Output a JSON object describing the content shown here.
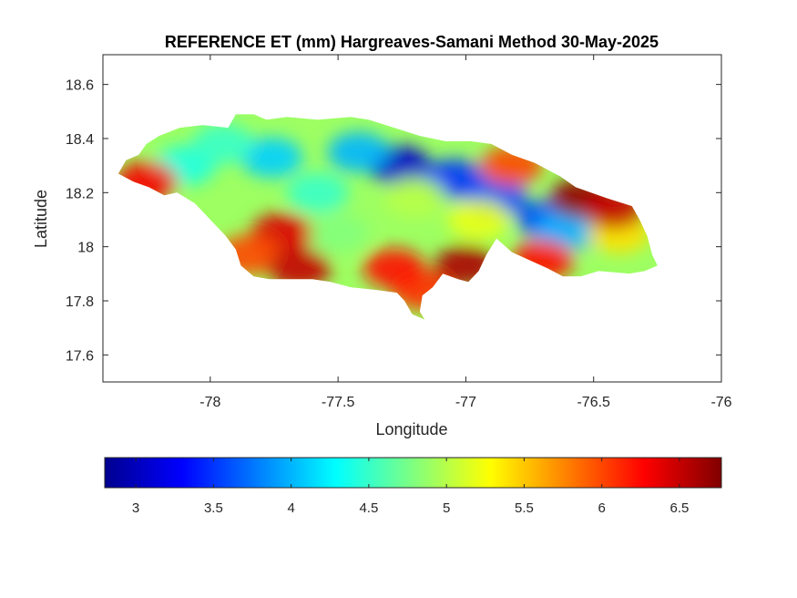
{
  "chart_data": {
    "type": "heatmap",
    "title": "REFERENCE ET (mm) Hargreaves-Samani Method  30-May-2025",
    "xlabel": "Longitude",
    "ylabel": "Latitude",
    "xlim": [
      -78.42,
      -76.0
    ],
    "ylim": [
      17.5,
      18.71
    ],
    "x_ticks": [
      -78,
      -77.5,
      -77,
      -76.5,
      -76
    ],
    "x_tick_labels": [
      "-78",
      "-77.5",
      "-77",
      "-76.5",
      "-76"
    ],
    "y_ticks": [
      17.6,
      17.8,
      18.0,
      18.2,
      18.4,
      18.6
    ],
    "y_tick_labels": [
      "17.6",
      "17.8",
      "18",
      "18.2",
      "18.4",
      "18.6"
    ],
    "grid": false,
    "colormap": "jet",
    "colorbar": {
      "orientation": "horizontal",
      "placement": "bottom",
      "range": [
        2.8,
        6.77
      ],
      "ticks": [
        3,
        3.5,
        4,
        4.5,
        5,
        5.5,
        6,
        6.5
      ],
      "tick_labels": [
        "3",
        "3.5",
        "4",
        "4.5",
        "5",
        "5.5",
        "6",
        "6.5"
      ]
    },
    "region_outline": [
      [
        -78.36,
        18.27
      ],
      [
        -78.33,
        18.32
      ],
      [
        -78.28,
        18.34
      ],
      [
        -78.25,
        18.38
      ],
      [
        -78.2,
        18.41
      ],
      [
        -78.12,
        18.44
      ],
      [
        -78.03,
        18.45
      ],
      [
        -77.93,
        18.44
      ],
      [
        -77.9,
        18.49
      ],
      [
        -77.83,
        18.49
      ],
      [
        -77.78,
        18.47
      ],
      [
        -77.7,
        18.48
      ],
      [
        -77.58,
        18.47
      ],
      [
        -77.45,
        18.48
      ],
      [
        -77.38,
        18.47
      ],
      [
        -77.28,
        18.44
      ],
      [
        -77.18,
        18.41
      ],
      [
        -77.08,
        18.39
      ],
      [
        -76.98,
        18.39
      ],
      [
        -76.9,
        18.38
      ],
      [
        -76.82,
        18.34
      ],
      [
        -76.73,
        18.31
      ],
      [
        -76.63,
        18.26
      ],
      [
        -76.57,
        18.22
      ],
      [
        -76.45,
        18.18
      ],
      [
        -76.35,
        18.15
      ],
      [
        -76.32,
        18.1
      ],
      [
        -76.29,
        18.04
      ],
      [
        -76.27,
        17.97
      ],
      [
        -76.25,
        17.93
      ],
      [
        -76.3,
        17.91
      ],
      [
        -76.36,
        17.9
      ],
      [
        -76.48,
        17.91
      ],
      [
        -76.55,
        17.89
      ],
      [
        -76.62,
        17.89
      ],
      [
        -76.68,
        17.92
      ],
      [
        -76.75,
        17.95
      ],
      [
        -76.82,
        17.98
      ],
      [
        -76.88,
        18.03
      ],
      [
        -76.92,
        17.97
      ],
      [
        -76.95,
        17.91
      ],
      [
        -76.99,
        17.87
      ],
      [
        -77.03,
        17.88
      ],
      [
        -77.09,
        17.9
      ],
      [
        -77.13,
        17.85
      ],
      [
        -77.17,
        17.82
      ],
      [
        -77.18,
        17.76
      ],
      [
        -77.16,
        17.73
      ],
      [
        -77.21,
        17.75
      ],
      [
        -77.24,
        17.8
      ],
      [
        -77.27,
        17.83
      ],
      [
        -77.35,
        17.84
      ],
      [
        -77.45,
        17.85
      ],
      [
        -77.53,
        17.87
      ],
      [
        -77.6,
        17.88
      ],
      [
        -77.68,
        17.88
      ],
      [
        -77.77,
        17.88
      ],
      [
        -77.83,
        17.89
      ],
      [
        -77.88,
        17.93
      ],
      [
        -77.9,
        17.99
      ],
      [
        -77.94,
        18.04
      ],
      [
        -78.0,
        18.1
      ],
      [
        -78.06,
        18.16
      ],
      [
        -78.13,
        18.2
      ],
      [
        -78.18,
        18.19
      ],
      [
        -78.24,
        18.22
      ],
      [
        -78.3,
        18.24
      ],
      [
        -78.36,
        18.27
      ]
    ],
    "hotspots": [
      {
        "lon": -77.26,
        "lat": 18.3,
        "value": 3.1
      },
      {
        "lon": -77.05,
        "lat": 18.25,
        "value": 3.5
      },
      {
        "lon": -76.88,
        "lat": 18.18,
        "value": 3.6
      },
      {
        "lon": -76.68,
        "lat": 18.1,
        "value": 3.6
      },
      {
        "lon": -76.6,
        "lat": 18.06,
        "value": 4.0
      },
      {
        "lon": -77.42,
        "lat": 18.35,
        "value": 4.0
      },
      {
        "lon": -77.76,
        "lat": 18.33,
        "value": 4.1
      },
      {
        "lon": -78.1,
        "lat": 18.3,
        "value": 4.4
      },
      {
        "lon": -77.95,
        "lat": 18.38,
        "value": 4.5
      },
      {
        "lon": -77.58,
        "lat": 18.2,
        "value": 4.5
      },
      {
        "lon": -77.5,
        "lat": 18.05,
        "value": 4.8
      },
      {
        "lon": -77.2,
        "lat": 18.18,
        "value": 5.0
      },
      {
        "lon": -76.4,
        "lat": 18.05,
        "value": 5.4
      },
      {
        "lon": -76.95,
        "lat": 18.1,
        "value": 5.2
      },
      {
        "lon": -76.55,
        "lat": 18.18,
        "value": 6.7
      },
      {
        "lon": -76.42,
        "lat": 18.14,
        "value": 6.5
      },
      {
        "lon": -76.82,
        "lat": 18.3,
        "value": 6.0
      },
      {
        "lon": -76.7,
        "lat": 17.95,
        "value": 6.2
      },
      {
        "lon": -77.0,
        "lat": 17.93,
        "value": 6.6
      },
      {
        "lon": -77.17,
        "lat": 17.84,
        "value": 6.1
      },
      {
        "lon": -77.28,
        "lat": 17.92,
        "value": 6.2
      },
      {
        "lon": -77.72,
        "lat": 18.05,
        "value": 6.4
      },
      {
        "lon": -77.85,
        "lat": 17.97,
        "value": 6.0
      },
      {
        "lon": -78.25,
        "lat": 18.24,
        "value": 6.3
      },
      {
        "lon": -77.65,
        "lat": 17.92,
        "value": 6.5
      }
    ]
  }
}
